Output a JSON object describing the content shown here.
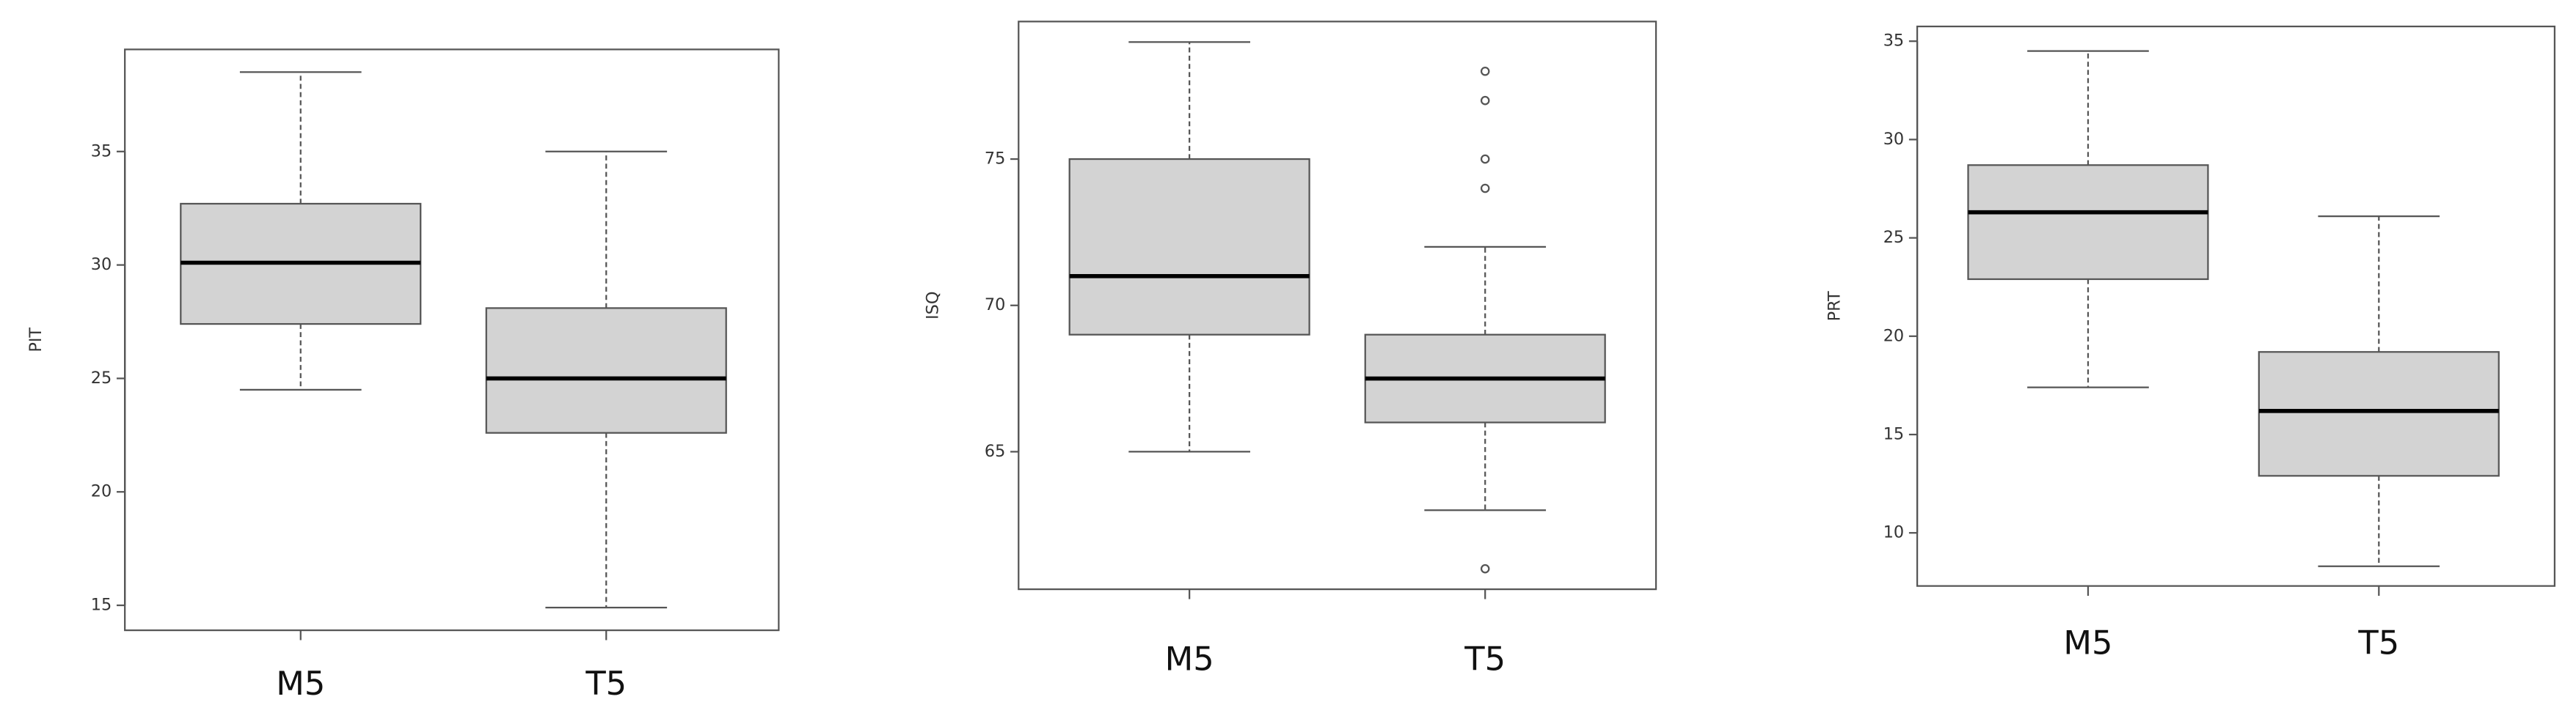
{
  "chart_data": [
    {
      "type": "box",
      "ylabel": "PIT",
      "categories": [
        "M5",
        "T5"
      ],
      "boxes": [
        {
          "whisker_low": 24.5,
          "q1": 27.4,
          "median": 30.1,
          "q3": 32.7,
          "whisker_high": 38.5
        },
        {
          "whisker_low": 14.9,
          "q1": 22.6,
          "median": 25,
          "q3": 28.1,
          "whisker_high": 35
        }
      ],
      "ylim": [
        13.9,
        39.5
      ],
      "yticks": [
        15,
        20,
        25,
        30,
        35
      ],
      "color": "#d3d3d3"
    },
    {
      "type": "box",
      "ylabel": "ISQ",
      "categories": [
        "M5",
        "T5"
      ],
      "boxes": [
        {
          "whisker_low": 65,
          "q1": 69,
          "median": 71,
          "q3": 75,
          "whisker_high": 79
        },
        {
          "whisker_low": 63,
          "q1": 66,
          "median": 67.5,
          "q3": 69,
          "whisker_high": 72,
          "outliers": [
            78,
            77,
            75,
            74,
            61
          ]
        }
      ],
      "ylim": [
        60.3,
        79.7
      ],
      "yticks": [
        65,
        70,
        75
      ],
      "color": "#d3d3d3"
    },
    {
      "type": "box",
      "ylabel": "PRT",
      "categories": [
        "M5",
        "T5"
      ],
      "boxes": [
        {
          "whisker_low": 17.4,
          "q1": 22.9,
          "median": 26.3,
          "q3": 28.7,
          "whisker_high": 34.5
        },
        {
          "whisker_low": 8.3,
          "q1": 12.9,
          "median": 16.2,
          "q3": 19.2,
          "whisker_high": 26.1
        }
      ],
      "ylim": [
        7.3,
        35.75
      ],
      "yticks": [
        10,
        15,
        20,
        25,
        30,
        35
      ],
      "color": "#d3d3d3"
    }
  ]
}
